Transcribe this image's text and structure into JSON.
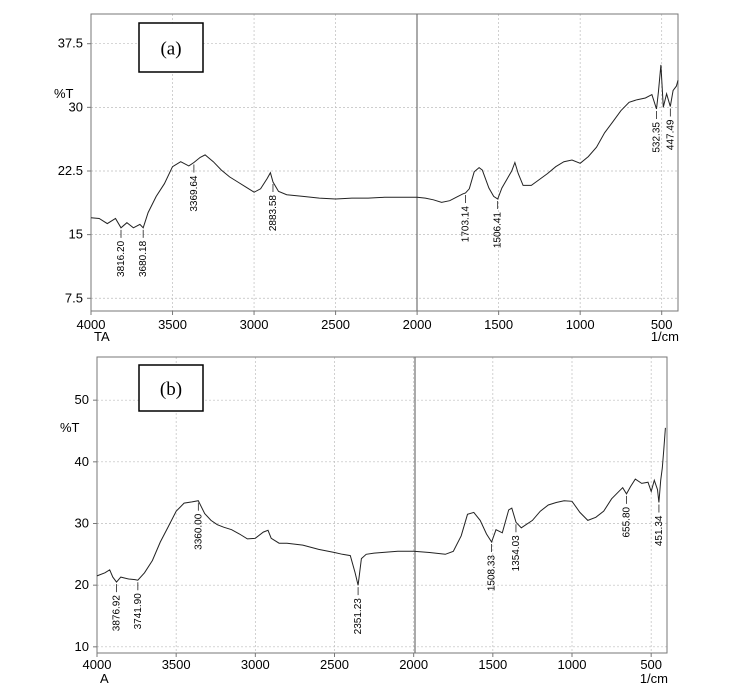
{
  "chart_data": [
    {
      "type": "line",
      "panel_label": "(a)",
      "ylabel": "%T",
      "xlabel": "1/cm",
      "corner_label": "TA",
      "xlim": [
        4000,
        400
      ],
      "ylim": [
        6,
        41
      ],
      "xticks": [
        4000,
        3500,
        3000,
        2500,
        2000,
        1500,
        1000,
        500
      ],
      "yticks": [
        "7.5",
        "15",
        "22.5",
        "30",
        "37.5"
      ],
      "grid": true,
      "series": [
        {
          "x": [
            4000,
            3950,
            3900,
            3850,
            3816,
            3780,
            3740,
            3700,
            3680,
            3650,
            3600,
            3550,
            3500,
            3450,
            3400,
            3369,
            3330,
            3300,
            3250,
            3200,
            3150,
            3100,
            3050,
            3000,
            2960,
            2920,
            2900,
            2884,
            2850,
            2800,
            2700,
            2600,
            2500,
            2400,
            2300,
            2200,
            2100,
            2000,
            1950,
            1900,
            1850,
            1800,
            1760,
            1720,
            1703,
            1680,
            1650,
            1620,
            1600,
            1560,
            1530,
            1506,
            1480,
            1450,
            1420,
            1400,
            1380,
            1350,
            1300,
            1250,
            1200,
            1150,
            1100,
            1050,
            1000,
            950,
            900,
            850,
            800,
            750,
            700,
            650,
            600,
            560,
            532,
            520,
            505,
            490,
            470,
            447,
            430,
            410,
            400
          ],
          "values": [
            17.0,
            16.9,
            16.3,
            16.9,
            15.8,
            16.4,
            15.8,
            16.2,
            15.8,
            17.6,
            19.5,
            21.0,
            23.0,
            23.6,
            23.1,
            23.5,
            24.1,
            24.4,
            23.6,
            22.6,
            21.8,
            21.2,
            20.6,
            20.0,
            20.4,
            21.6,
            22.3,
            21.2,
            20.1,
            19.7,
            19.5,
            19.3,
            19.2,
            19.3,
            19.3,
            19.4,
            19.4,
            19.4,
            19.3,
            19.1,
            18.8,
            19.0,
            19.4,
            19.8,
            19.9,
            20.4,
            22.4,
            22.9,
            22.6,
            20.5,
            19.5,
            19.2,
            20.5,
            21.5,
            22.5,
            23.5,
            22.2,
            20.8,
            20.8,
            21.5,
            22.2,
            23.0,
            23.6,
            23.8,
            23.4,
            24.2,
            25.3,
            27.0,
            28.3,
            29.6,
            30.6,
            30.9,
            31.1,
            31.5,
            29.8,
            31.8,
            35.0,
            30.0,
            31.6,
            30.1,
            32.0,
            32.5,
            33.2
          ]
        }
      ],
      "peak_labels": [
        {
          "x": 3816,
          "y": 15.8,
          "text": "3816.20",
          "dir": "down"
        },
        {
          "x": 3680,
          "y": 15.8,
          "text": "3680.18",
          "dir": "down"
        },
        {
          "x": 3369,
          "y": 23.5,
          "text": "3369.64",
          "dir": "down"
        },
        {
          "x": 2884,
          "y": 21.2,
          "text": "2883.58",
          "dir": "down"
        },
        {
          "x": 1703,
          "y": 19.9,
          "text": "1703.14",
          "dir": "down"
        },
        {
          "x": 1506,
          "y": 19.2,
          "text": "1506.41",
          "dir": "down"
        },
        {
          "x": 532,
          "y": 29.8,
          "text": "532.35",
          "dir": "down"
        },
        {
          "x": 447,
          "y": 30.1,
          "text": "447.49",
          "dir": "down"
        }
      ]
    },
    {
      "type": "line",
      "panel_label": "(b)",
      "ylabel": "%T",
      "xlabel": "1/cm",
      "corner_label": "A",
      "xlim": [
        4000,
        400
      ],
      "ylim": [
        9,
        57
      ],
      "xticks": [
        4000,
        3500,
        3000,
        2500,
        2000,
        1500,
        1000,
        500
      ],
      "yticks": [
        "10",
        "20",
        "30",
        "40",
        "50"
      ],
      "grid": true,
      "series": [
        {
          "x": [
            4000,
            3950,
            3920,
            3900,
            3877,
            3850,
            3800,
            3760,
            3742,
            3700,
            3650,
            3600,
            3550,
            3500,
            3450,
            3400,
            3360,
            3320,
            3280,
            3240,
            3200,
            3150,
            3100,
            3050,
            3000,
            2950,
            2920,
            2900,
            2850,
            2800,
            2700,
            2600,
            2500,
            2450,
            2400,
            2370,
            2351,
            2330,
            2300,
            2250,
            2200,
            2100,
            2000,
            1900,
            1800,
            1750,
            1700,
            1660,
            1620,
            1580,
            1540,
            1508,
            1480,
            1440,
            1400,
            1380,
            1354,
            1320,
            1250,
            1200,
            1150,
            1100,
            1050,
            1000,
            950,
            900,
            850,
            800,
            750,
            700,
            680,
            656,
            630,
            600,
            560,
            520,
            500,
            480,
            460,
            451,
            440,
            430,
            420,
            410
          ],
          "values": [
            21.5,
            22.0,
            22.5,
            21.3,
            20.5,
            21.3,
            21.0,
            20.9,
            20.8,
            22.0,
            24.0,
            27.0,
            29.5,
            32.0,
            33.3,
            33.5,
            33.7,
            31.6,
            30.5,
            29.8,
            29.4,
            29.0,
            28.3,
            27.5,
            27.6,
            28.6,
            28.9,
            27.6,
            26.8,
            26.8,
            26.5,
            25.8,
            25.3,
            25.0,
            24.8,
            22.0,
            20.0,
            24.3,
            25.0,
            25.2,
            25.3,
            25.5,
            25.5,
            25.3,
            25.0,
            25.5,
            28.0,
            31.5,
            31.8,
            30.5,
            28.3,
            27.0,
            29.0,
            28.5,
            32.2,
            32.5,
            30.2,
            29.3,
            30.5,
            32.0,
            33.0,
            33.4,
            33.7,
            33.6,
            31.8,
            30.5,
            31.0,
            32.0,
            34.0,
            35.3,
            35.8,
            34.8,
            36.0,
            37.2,
            36.5,
            36.7,
            35.2,
            37.0,
            35.5,
            33.4,
            37.0,
            39.0,
            42.0,
            45.5
          ]
        }
      ],
      "peak_labels": [
        {
          "x": 3877,
          "y": 20.5,
          "text": "3876.92",
          "dir": "down"
        },
        {
          "x": 3742,
          "y": 20.8,
          "text": "3741.90",
          "dir": "down"
        },
        {
          "x": 3360,
          "y": 33.7,
          "text": "3360.00",
          "dir": "down"
        },
        {
          "x": 2351,
          "y": 20.0,
          "text": "2351.23",
          "dir": "down"
        },
        {
          "x": 1508,
          "y": 27.0,
          "text": "1508.33",
          "dir": "down"
        },
        {
          "x": 1354,
          "y": 30.2,
          "text": "1354.03",
          "dir": "down"
        },
        {
          "x": 656,
          "y": 34.8,
          "text": "655.80",
          "dir": "down"
        },
        {
          "x": 451,
          "y": 33.4,
          "text": "451.34",
          "dir": "down"
        }
      ]
    }
  ]
}
